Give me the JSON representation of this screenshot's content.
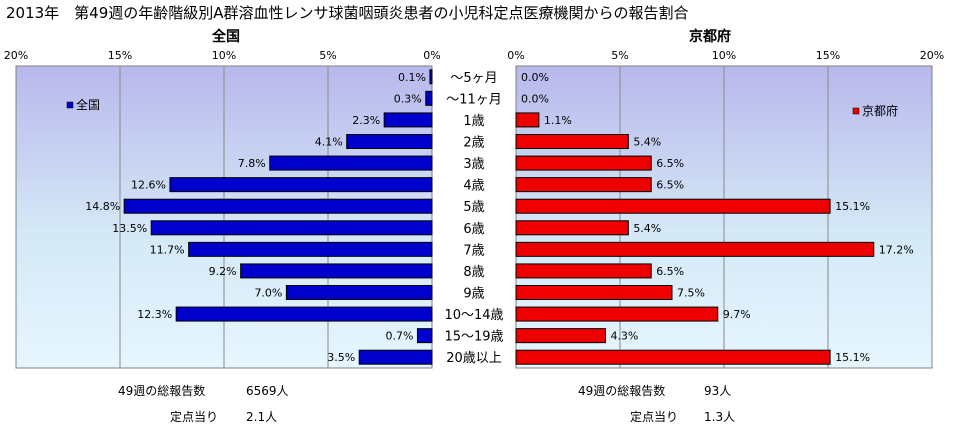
{
  "title": "2013年　第49週の年齢階級別A群溶血性レンサ球菌咽頭炎患者の小児科定点医療機関からの報告割合",
  "chart_data": {
    "type": "bar",
    "categories": [
      "～5ヶ月",
      "～11ヶ月",
      "1歳",
      "2歳",
      "3歳",
      "4歳",
      "5歳",
      "6歳",
      "7歳",
      "8歳",
      "9歳",
      "10～14歳",
      "15～19歳",
      "20歳以上"
    ],
    "xlim": [
      0,
      20
    ],
    "ticks": [
      "0%",
      "5%",
      "10%",
      "15%",
      "20%"
    ],
    "grid": true,
    "series": [
      {
        "name": "全国",
        "panel_title": "全国",
        "color": "#0000cc",
        "values": [
          0.1,
          0.3,
          2.3,
          4.1,
          7.8,
          12.6,
          14.8,
          13.5,
          11.7,
          9.2,
          7.0,
          12.3,
          0.7,
          3.5
        ],
        "labels": [
          "0.1%",
          "0.3%",
          "2.3%",
          "4.1%",
          "7.8%",
          "12.6%",
          "14.8%",
          "13.5%",
          "11.7%",
          "9.2%",
          "7.0%",
          "12.3%",
          "0.7%",
          "3.5%"
        ],
        "legend_position": "top-left"
      },
      {
        "name": "京都府",
        "panel_title": "京都府",
        "color": "#ee0000",
        "values": [
          0.0,
          0.0,
          1.1,
          5.4,
          6.5,
          6.5,
          15.1,
          5.4,
          17.2,
          6.5,
          7.5,
          9.7,
          4.3,
          15.1
        ],
        "labels": [
          "0.0%",
          "0.0%",
          "1.1%",
          "5.4%",
          "6.5%",
          "6.5%",
          "15.1%",
          "5.4%",
          "17.2%",
          "6.5%",
          "7.5%",
          "9.7%",
          "4.3%",
          "15.1%"
        ],
        "legend_position": "top-right"
      }
    ]
  },
  "footer": {
    "national": {
      "total_label": "49週の総報告数",
      "total_value": "6569人",
      "per_label": "定点当り",
      "per_value": "2.1人"
    },
    "kyoto": {
      "total_label": "49週の総報告数",
      "total_value": "93人",
      "per_label": "定点当り",
      "per_value": "1.3人"
    }
  }
}
